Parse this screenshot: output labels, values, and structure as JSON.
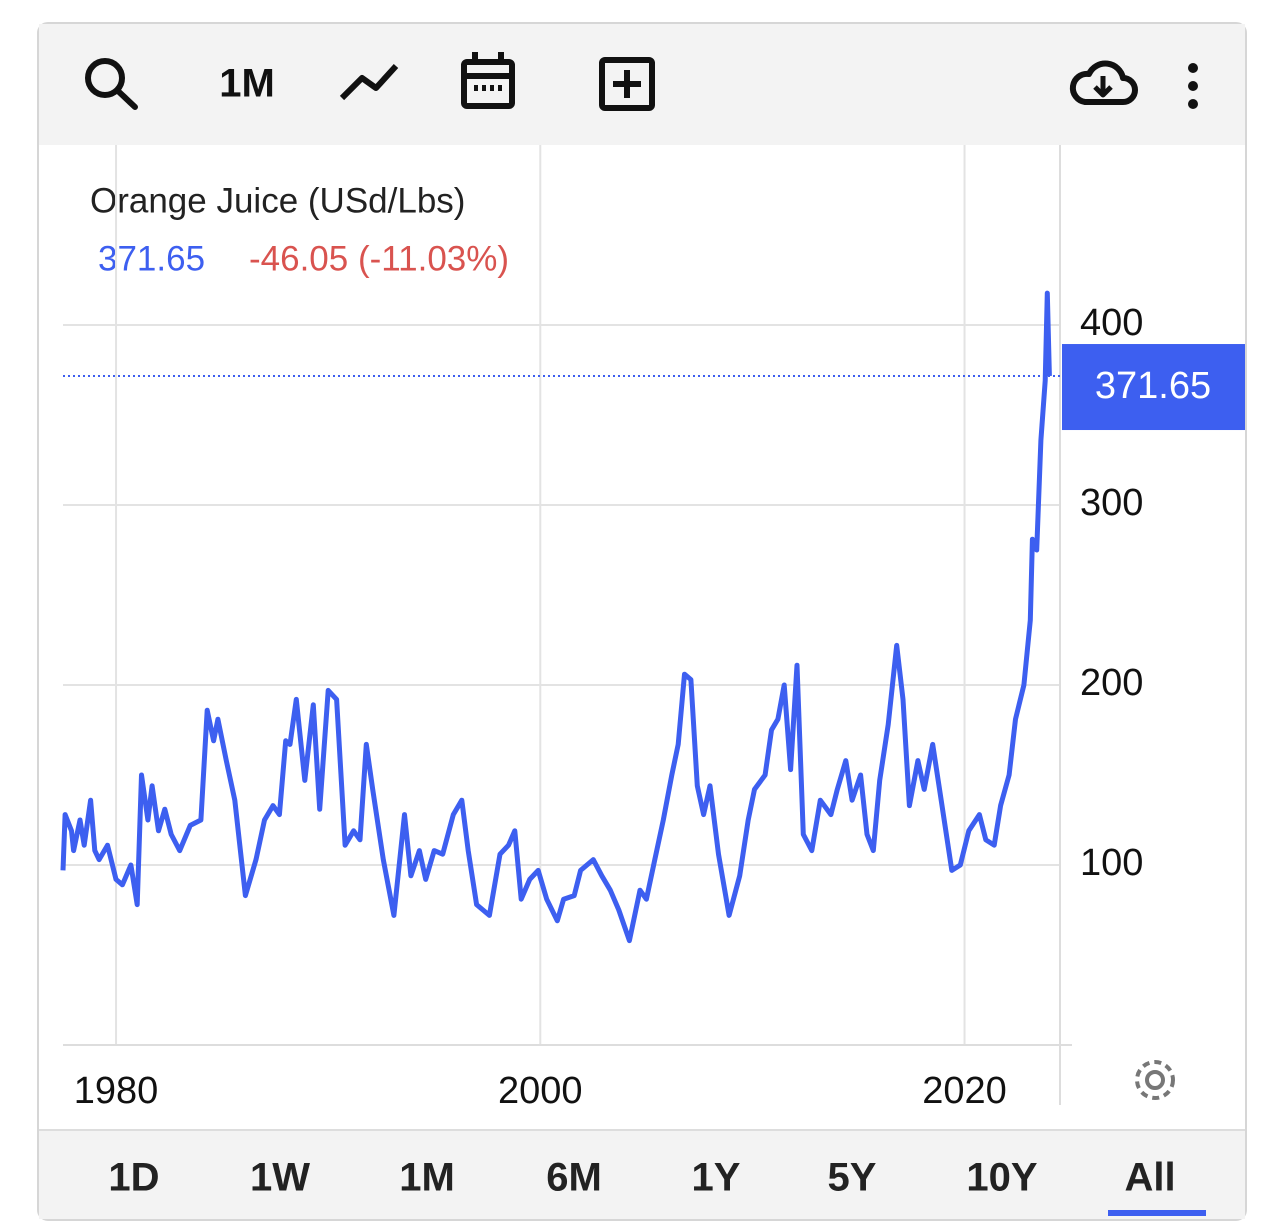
{
  "toolbar": {
    "interval": "1M"
  },
  "chart_data": {
    "type": "line",
    "title": "Orange Juice (USd/Lbs)",
    "last": 371.65,
    "change": "-46.05 (-11.03%)",
    "x": [
      1977.5,
      1977.6,
      1977.9,
      1978.0,
      1978.3,
      1978.5,
      1978.8,
      1979.0,
      1979.2,
      1979.6,
      1980.0,
      1980.3,
      1980.7,
      1981.0,
      1981.2,
      1981.5,
      1981.7,
      1982.0,
      1982.3,
      1982.6,
      1983.0,
      1983.5,
      1984.0,
      1984.3,
      1984.6,
      1984.8,
      1985.2,
      1985.6,
      1986.1,
      1986.6,
      1987.0,
      1987.4,
      1987.7,
      1988.0,
      1988.2,
      1988.5,
      1988.9,
      1989.3,
      1989.6,
      1990.0,
      1990.4,
      1990.8,
      1991.2,
      1991.5,
      1991.8,
      1992.1,
      1992.6,
      1993.1,
      1993.6,
      1993.9,
      1994.3,
      1994.6,
      1995.0,
      1995.4,
      1995.9,
      1996.3,
      1996.6,
      1997.0,
      1997.6,
      1998.1,
      1998.5,
      1998.8,
      1999.1,
      1999.5,
      1999.9,
      2000.3,
      2000.8,
      2001.1,
      2001.6,
      2001.9,
      2002.5,
      2002.9,
      2003.3,
      2003.7,
      2004.2,
      2004.7,
      2005.0,
      2005.4,
      2005.8,
      2006.2,
      2006.5,
      2006.8,
      2007.1,
      2007.4,
      2007.7,
      2008.0,
      2008.4,
      2008.9,
      2009.4,
      2009.8,
      2010.1,
      2010.6,
      2010.9,
      2011.2,
      2011.5,
      2011.8,
      2012.1,
      2012.4,
      2012.8,
      2013.2,
      2013.7,
      2014.0,
      2014.4,
      2014.7,
      2015.1,
      2015.4,
      2015.7,
      2016.0,
      2016.4,
      2016.8,
      2017.1,
      2017.4,
      2017.8,
      2018.1,
      2018.5,
      2018.9,
      2019.4,
      2019.8,
      2020.2,
      2020.7,
      2021.0,
      2021.4,
      2021.7,
      2022.1,
      2022.4,
      2022.8,
      2023.1,
      2023.2,
      2023.4,
      2023.6,
      2023.8,
      2023.9,
      2024.0
    ],
    "series": [
      {
        "name": "Orange Juice",
        "color": "#3d5ff0",
        "values": [
          97,
          128,
          119,
          108,
          125,
          111,
          136,
          108,
          103,
          111,
          92,
          89,
          100,
          78,
          150,
          125,
          144,
          119,
          131,
          117,
          108,
          122,
          125,
          186,
          169,
          181,
          158,
          136,
          83,
          103,
          125,
          133,
          128,
          169,
          167,
          192,
          147,
          189,
          131,
          197,
          192,
          111,
          119,
          114,
          167,
          142,
          103,
          72,
          128,
          94,
          108,
          92,
          108,
          106,
          128,
          136,
          108,
          78,
          72,
          106,
          111,
          119,
          81,
          92,
          97,
          81,
          69,
          81,
          83,
          97,
          103,
          94,
          86,
          75,
          58,
          86,
          81,
          103,
          125,
          150,
          167,
          206,
          203,
          144,
          128,
          144,
          106,
          72,
          94,
          125,
          142,
          150,
          175,
          181,
          200,
          153,
          211,
          117,
          108,
          136,
          128,
          142,
          158,
          136,
          150,
          117,
          108,
          147,
          178,
          222,
          192,
          133,
          158,
          142,
          167,
          136,
          97,
          100,
          119,
          128,
          114,
          111,
          133,
          150,
          181,
          200,
          236,
          281,
          275,
          336,
          369,
          417.7,
          371.65
        ]
      }
    ],
    "xlim": [
      1977.5,
      2024.5
    ],
    "xticks": [
      1980,
      2000,
      2020
    ],
    "ylim": [
      0,
      500
    ],
    "yticks": [
      100,
      200,
      300,
      400
    ],
    "grid": true
  },
  "ranges": [
    "1D",
    "1W",
    "1M",
    "6M",
    "1Y",
    "5Y",
    "10Y",
    "All"
  ],
  "active_range": 7
}
